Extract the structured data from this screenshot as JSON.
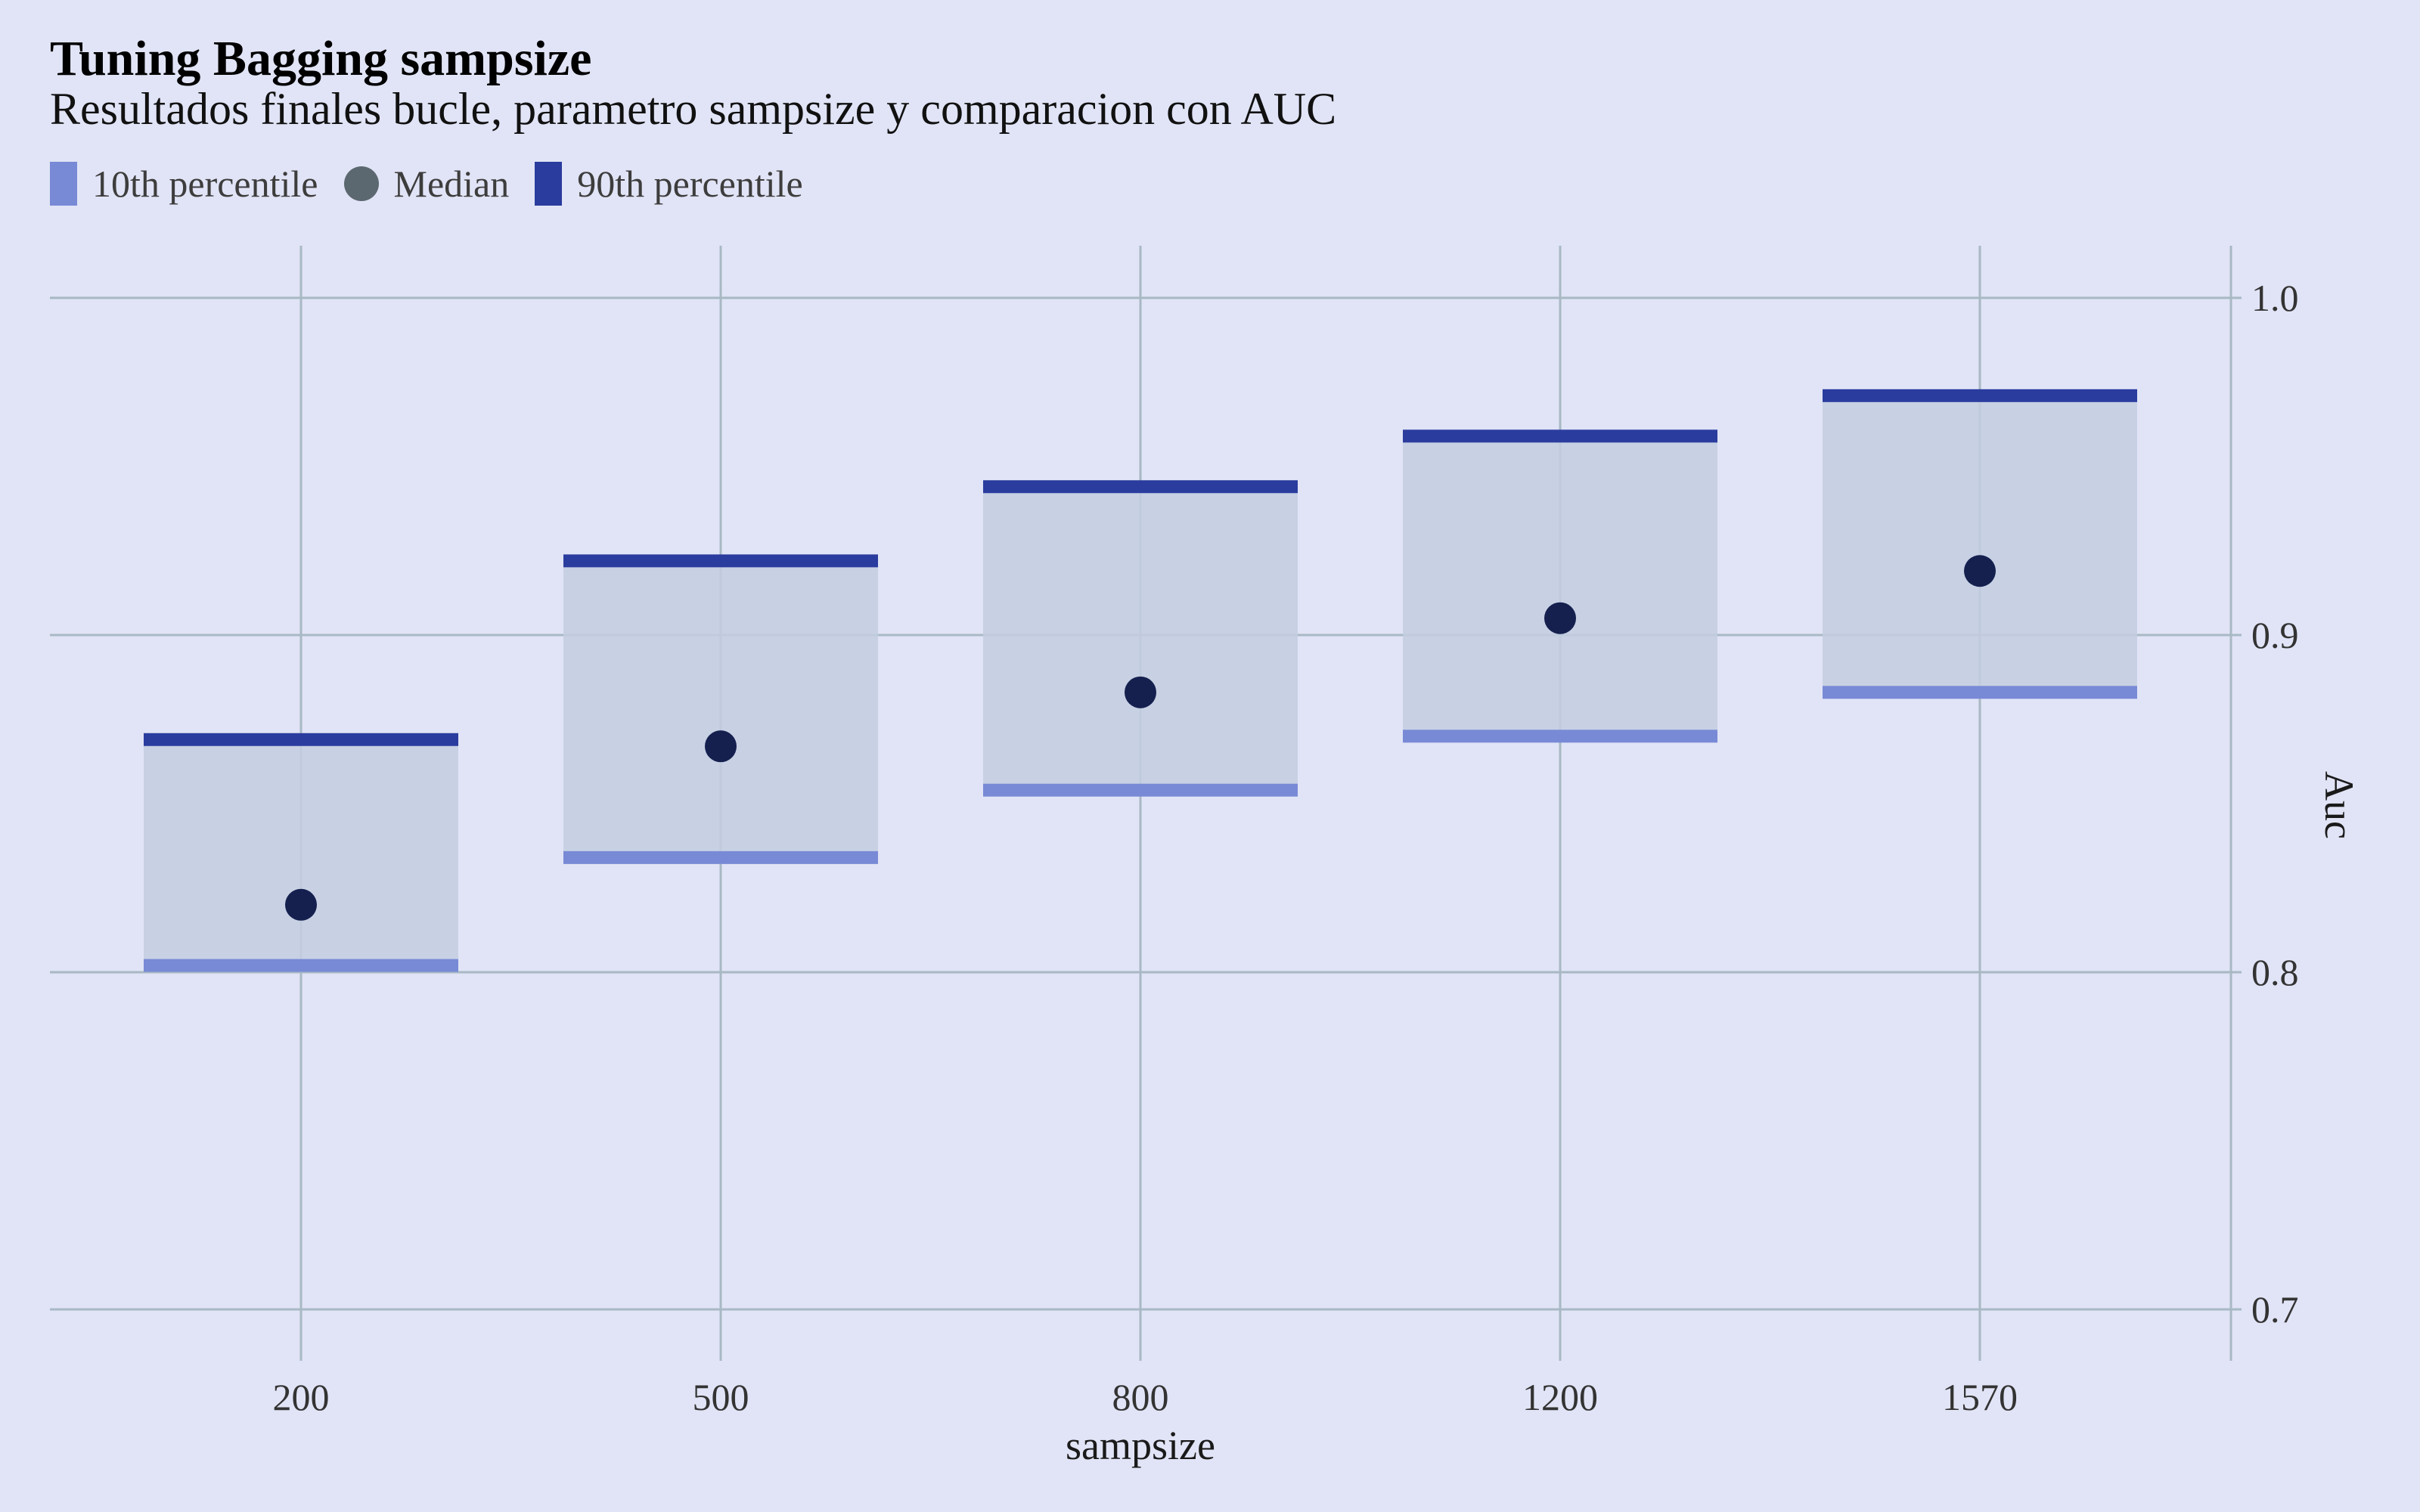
{
  "colors": {
    "background": "#e1e4f6",
    "grid": "#a8b9c4",
    "box_fill": "#c3cee0",
    "p10": "#7889d6",
    "median": "#15204f",
    "median_legend": "#5c6870",
    "p90": "#2a3c9e"
  },
  "chart_data": {
    "type": "bar",
    "title": "Tuning Bagging sampsize",
    "subtitle": "Resultados finales bucle, parametro sampsize y comparacion con AUC",
    "xlabel": "sampsize",
    "ylabel": "Auc",
    "categories": [
      "200",
      "500",
      "800",
      "1200",
      "1570"
    ],
    "ylim": [
      0.685,
      1.015
    ],
    "yticks": [
      0.7,
      0.8,
      0.9,
      1.0
    ],
    "ytick_labels": [
      "0.7",
      "0.8",
      "0.9",
      "1.0"
    ],
    "grid": true,
    "y_axis_position": "right",
    "legend_position": "top-left",
    "legend": [
      {
        "label": "10th percentile",
        "key": "bar",
        "color": "#7889d6"
      },
      {
        "label": "Median",
        "key": "dot",
        "color": "#5c6870"
      },
      {
        "label": "90th percentile",
        "key": "bar",
        "color": "#2a3c9e"
      }
    ],
    "series": [
      {
        "name": "10th percentile",
        "values": [
          0.802,
          0.834,
          0.854,
          0.87,
          0.883
        ]
      },
      {
        "name": "Median",
        "values": [
          0.82,
          0.867,
          0.883,
          0.905,
          0.919
        ]
      },
      {
        "name": "90th percentile",
        "values": [
          0.869,
          0.922,
          0.944,
          0.959,
          0.971
        ]
      }
    ]
  }
}
